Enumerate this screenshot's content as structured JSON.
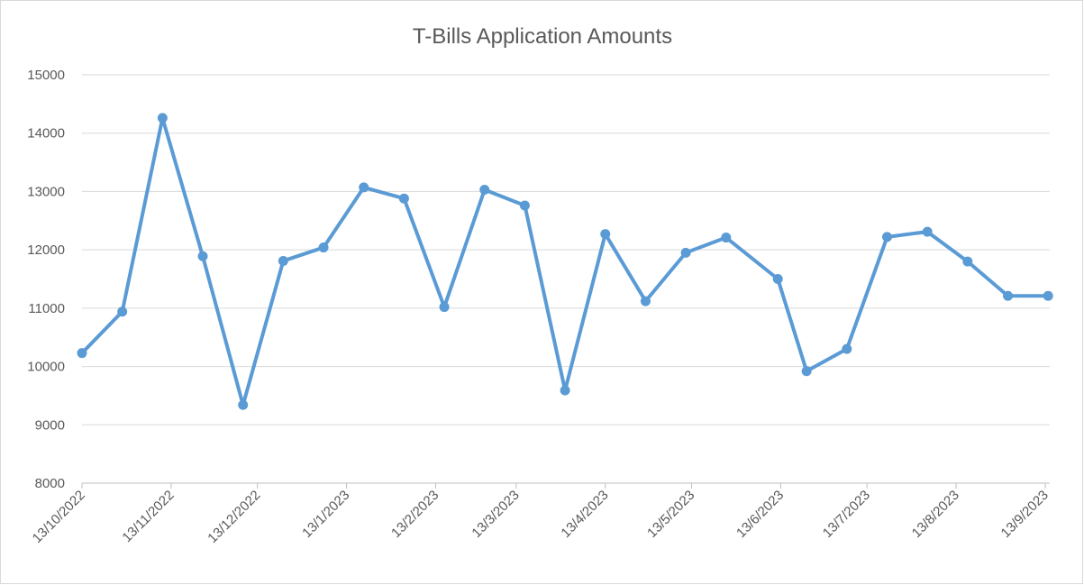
{
  "chart_data": {
    "type": "line",
    "title": "T-Bills Application Amounts",
    "x": [
      "2022-10-13",
      "2022-10-27",
      "2022-11-10",
      "2022-11-24",
      "2022-12-08",
      "2022-12-22",
      "2023-01-05",
      "2023-01-19",
      "2023-02-02",
      "2023-02-16",
      "2023-03-02",
      "2023-03-16",
      "2023-03-30",
      "2023-04-13",
      "2023-04-27",
      "2023-05-11",
      "2023-05-25",
      "2023-06-12",
      "2023-06-22",
      "2023-07-06",
      "2023-07-20",
      "2023-08-03",
      "2023-08-17",
      "2023-08-31",
      "2023-09-14"
    ],
    "series": [
      {
        "name": "Application Amount",
        "color": "#5b9bd5",
        "values": [
          10230,
          10940,
          14260,
          11890,
          9340,
          11810,
          12040,
          13070,
          12880,
          11020,
          13030,
          12760,
          9590,
          12270,
          11120,
          11950,
          12210,
          11500,
          9920,
          10300,
          12220,
          12310,
          11800,
          11210,
          11210
        ]
      }
    ],
    "xlim": [
      "2022-10-13",
      "2023-09-13"
    ],
    "xticks": [
      {
        "value": "2022-10-13",
        "label": "13/10/2022"
      },
      {
        "value": "2022-11-13",
        "label": "13/11/2022"
      },
      {
        "value": "2022-12-13",
        "label": "13/12/2022"
      },
      {
        "value": "2023-01-13",
        "label": "13/1/2023"
      },
      {
        "value": "2023-02-13",
        "label": "13/2/2023"
      },
      {
        "value": "2023-03-13",
        "label": "13/3/2023"
      },
      {
        "value": "2023-04-13",
        "label": "13/4/2023"
      },
      {
        "value": "2023-05-13",
        "label": "13/5/2023"
      },
      {
        "value": "2023-06-13",
        "label": "13/6/2023"
      },
      {
        "value": "2023-07-13",
        "label": "13/7/2023"
      },
      {
        "value": "2023-08-13",
        "label": "13/8/2023"
      },
      {
        "value": "2023-09-13",
        "label": "13/9/2023"
      }
    ],
    "ylim": [
      8000,
      15000
    ],
    "yticks": [
      8000,
      9000,
      10000,
      11000,
      12000,
      13000,
      14000,
      15000
    ],
    "grid": true
  }
}
